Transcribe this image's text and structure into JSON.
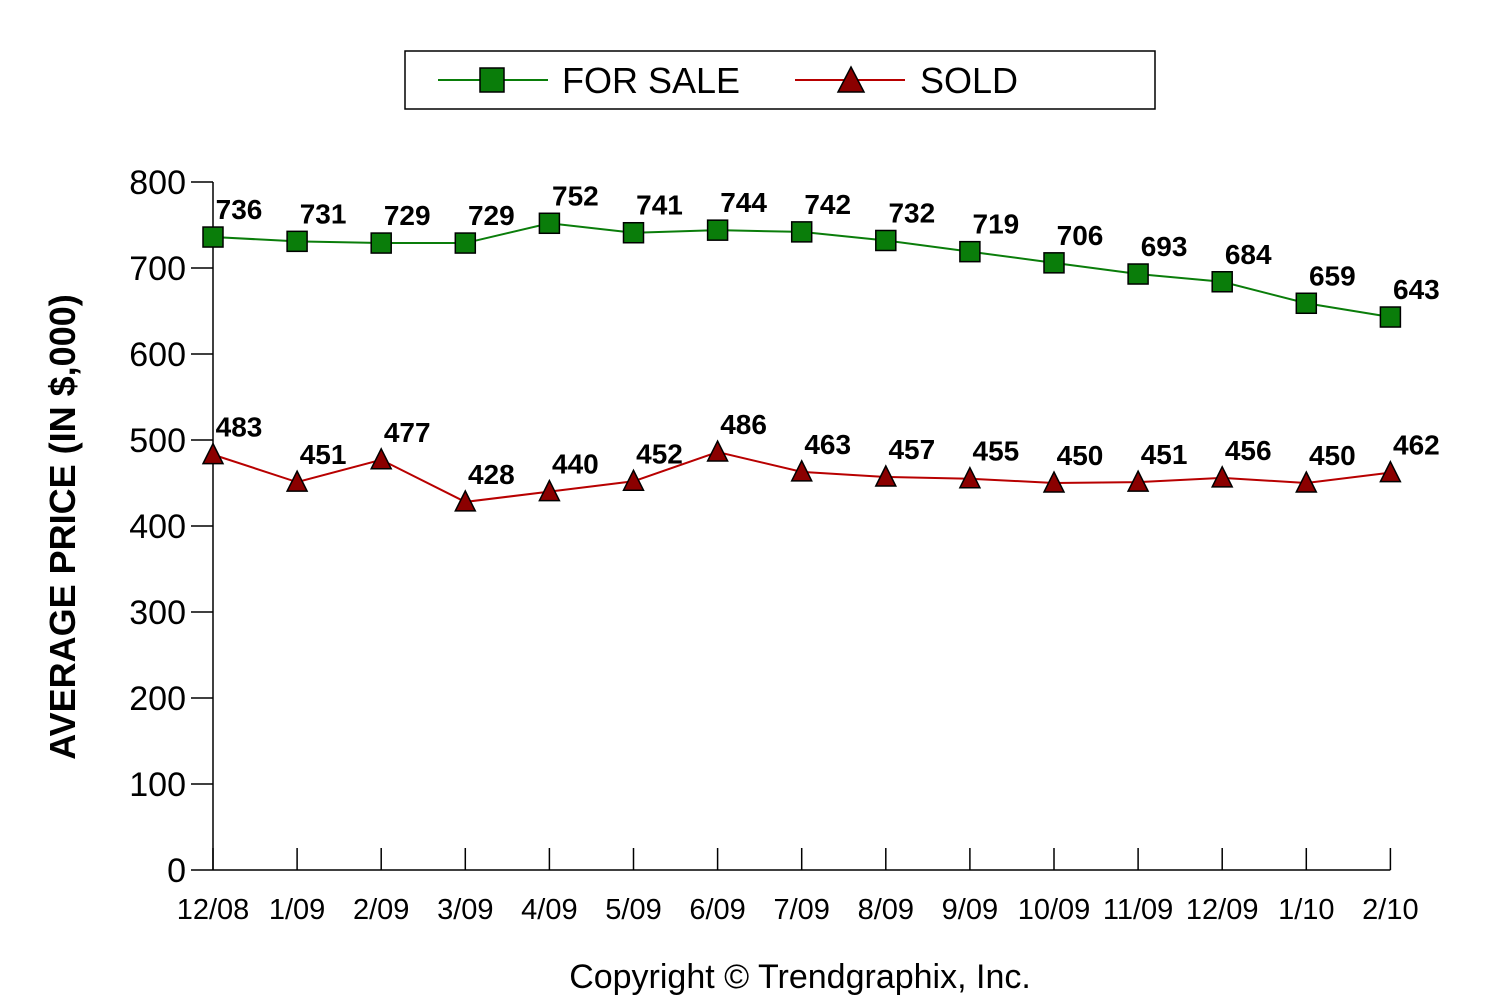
{
  "chart_data": {
    "type": "line",
    "categories": [
      "12/08",
      "1/09",
      "2/09",
      "3/09",
      "4/09",
      "5/09",
      "6/09",
      "7/09",
      "8/09",
      "9/09",
      "10/09",
      "11/09",
      "12/09",
      "1/10",
      "2/10"
    ],
    "series": [
      {
        "name": "FOR SALE",
        "color": "#0a7d0a",
        "marker": "square",
        "values": [
          736,
          731,
          729,
          729,
          752,
          741,
          744,
          742,
          732,
          719,
          706,
          693,
          684,
          659,
          643
        ]
      },
      {
        "name": "SOLD",
        "color": "#b80000",
        "marker_color": "#8b0000",
        "marker": "triangle",
        "values": [
          483,
          451,
          477,
          428,
          440,
          452,
          486,
          463,
          457,
          455,
          450,
          451,
          456,
          450,
          462
        ]
      }
    ],
    "ylabel": "AVERAGE PRICE (IN $,000)",
    "ylim": [
      0,
      800
    ],
    "yticks": [
      0,
      100,
      200,
      300,
      400,
      500,
      600,
      700,
      800
    ],
    "grid": false,
    "legend_position": "top-center",
    "footer": "Copyright © Trendgraphix, Inc."
  }
}
